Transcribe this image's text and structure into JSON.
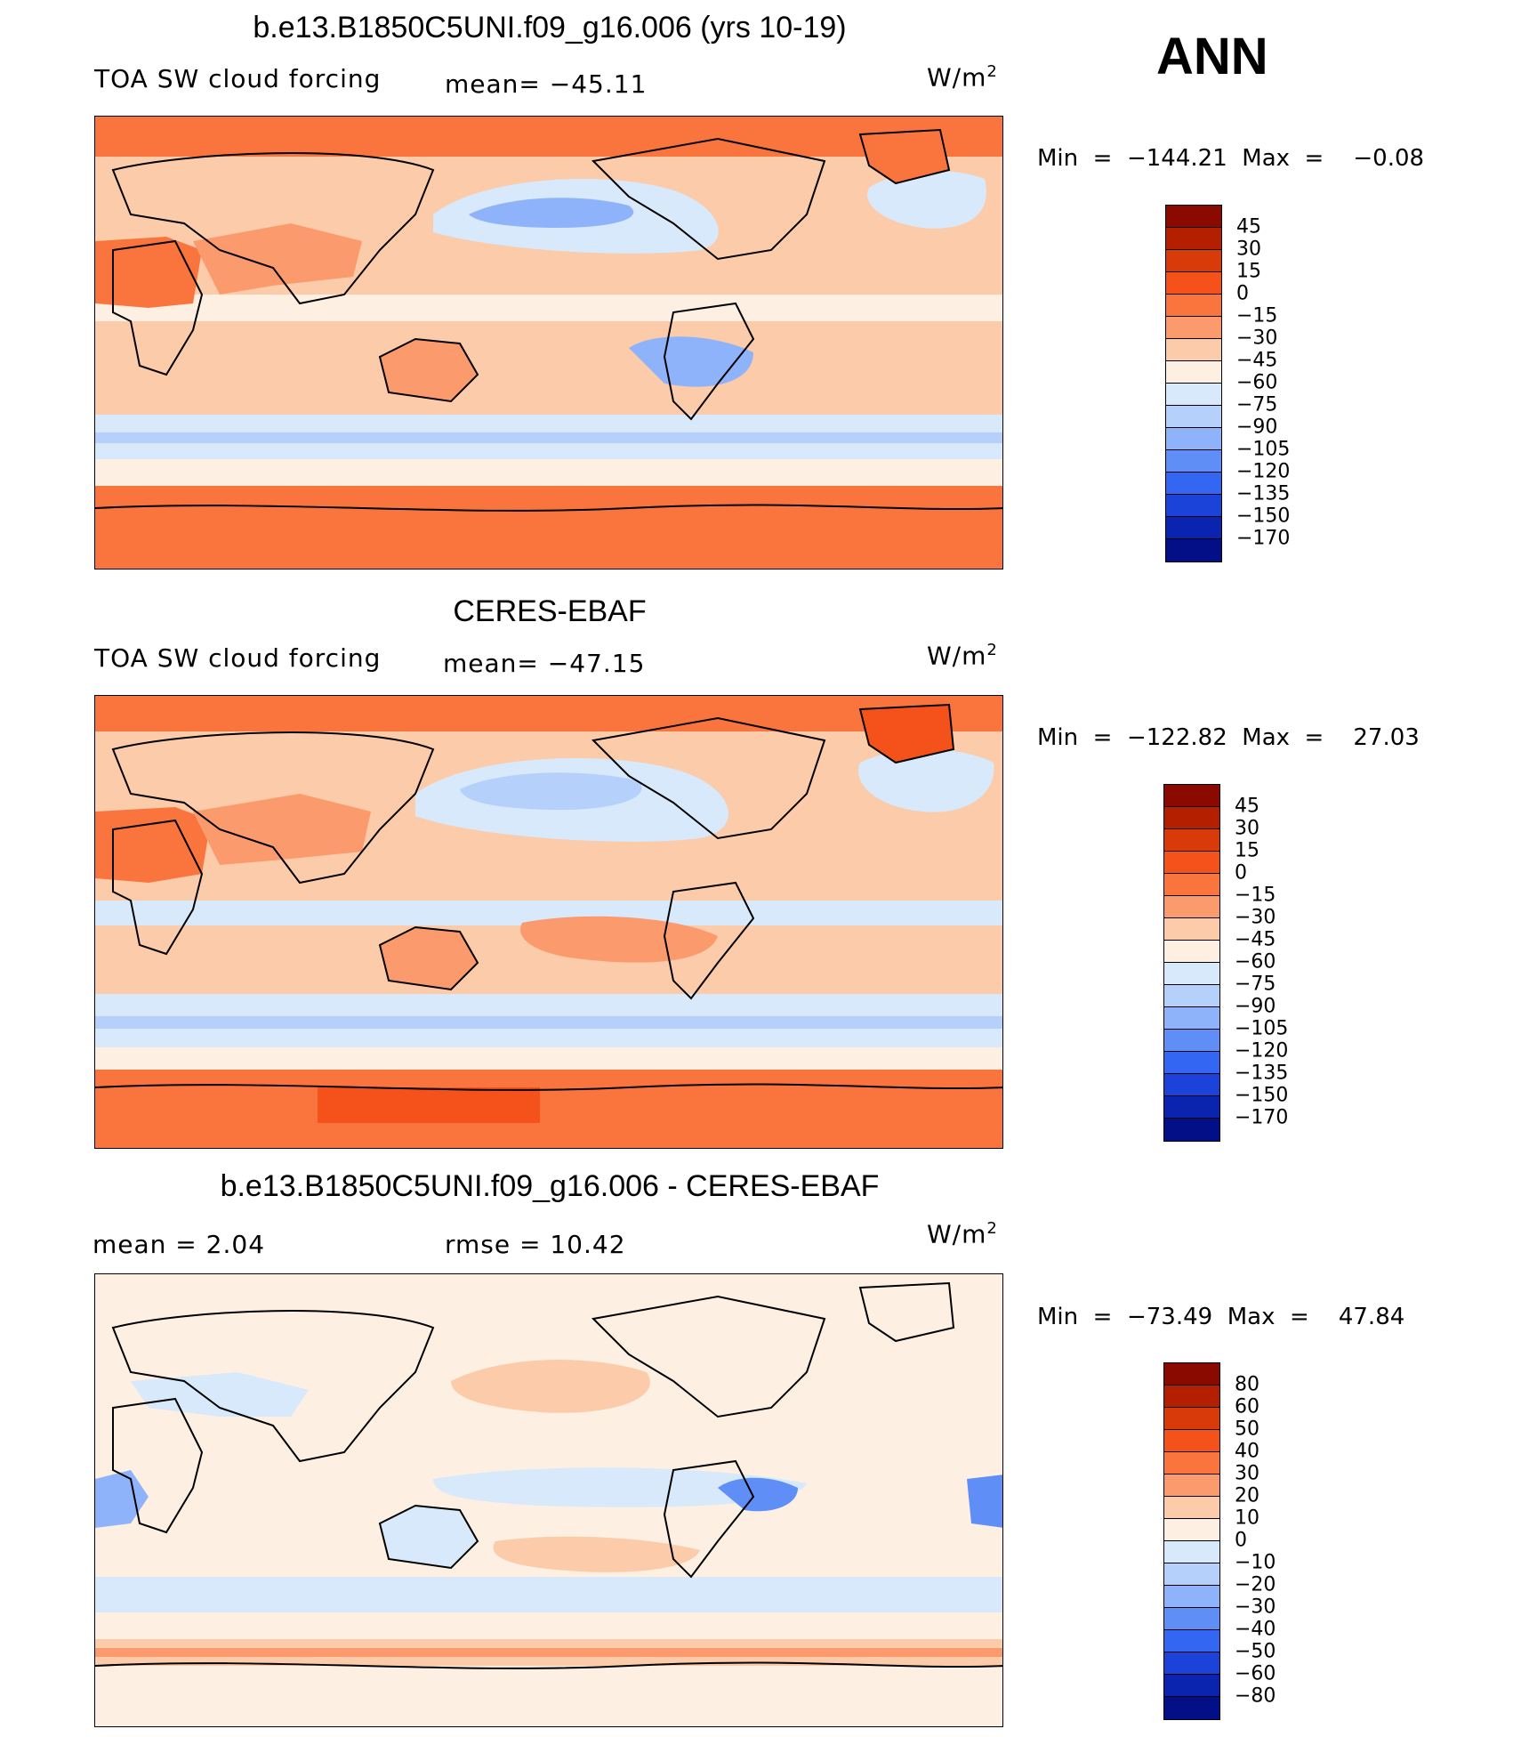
{
  "season": "ANN",
  "panels": [
    {
      "title": "b.e13.B1850C5UNI.f09_g16.006 (yrs 10-19)",
      "left_label": "TOA SW cloud forcing",
      "stat_label": "mean= −45.11",
      "units": "W/m",
      "units_sup": "2",
      "minmax": "Min  =  −144.21  Max  =    −0.08",
      "colorbar_labels": [
        "45",
        "30",
        "15",
        "0",
        "−15",
        "−30",
        "−45",
        "−60",
        "−75",
        "−90",
        "−105",
        "−120",
        "−135",
        "−150",
        "−170"
      ],
      "colorbar_colors": [
        "#8b0a00",
        "#b41f00",
        "#d83a09",
        "#f4521a",
        "#f9753d",
        "#fb9a6c",
        "#fccbaa",
        "#fdf0e3",
        "#d7e9fb",
        "#b4d0fb",
        "#8fb3fa",
        "#5f8ff6",
        "#3366f2",
        "#1c43d9",
        "#0b24b0",
        "#020f87"
      ],
      "map": {
        "style": "model"
      }
    },
    {
      "title": "CERES-EBAF",
      "left_label": "TOA SW cloud forcing",
      "stat_label": "mean= −47.15",
      "units": "W/m",
      "units_sup": "2",
      "minmax": "Min  =  −122.82  Max  =    27.03",
      "colorbar_labels": [
        "45",
        "30",
        "15",
        "0",
        "−15",
        "−30",
        "−45",
        "−60",
        "−75",
        "−90",
        "−105",
        "−120",
        "−135",
        "−150",
        "−170"
      ],
      "colorbar_colors": [
        "#8b0a00",
        "#b41f00",
        "#d83a09",
        "#f4521a",
        "#f9753d",
        "#fb9a6c",
        "#fccbaa",
        "#fdf0e3",
        "#d7e9fb",
        "#b4d0fb",
        "#8fb3fa",
        "#5f8ff6",
        "#3366f2",
        "#1c43d9",
        "#0b24b0",
        "#020f87"
      ],
      "map": {
        "style": "obs"
      }
    },
    {
      "title": "b.e13.B1850C5UNI.f09_g16.006 - CERES-EBAF",
      "left_label": "mean  =     2.04",
      "stat_label": "rmse  =    10.42",
      "units": "W/m",
      "units_sup": "2",
      "minmax": "Min  =  −73.49  Max  =    47.84",
      "colorbar_labels": [
        "80",
        "60",
        "50",
        "40",
        "30",
        "20",
        "10",
        "0",
        "−10",
        "−20",
        "−30",
        "−40",
        "−50",
        "−60",
        "−80"
      ],
      "colorbar_colors": [
        "#8b0a00",
        "#b41f00",
        "#d83a09",
        "#f4521a",
        "#f9753d",
        "#fb9a6c",
        "#fccbaa",
        "#fdf0e3",
        "#d7e9fb",
        "#b4d0fb",
        "#8fb3fa",
        "#5f8ff6",
        "#3366f2",
        "#1c43d9",
        "#0b24b0",
        "#020f87"
      ],
      "map": {
        "style": "diff"
      }
    }
  ]
}
